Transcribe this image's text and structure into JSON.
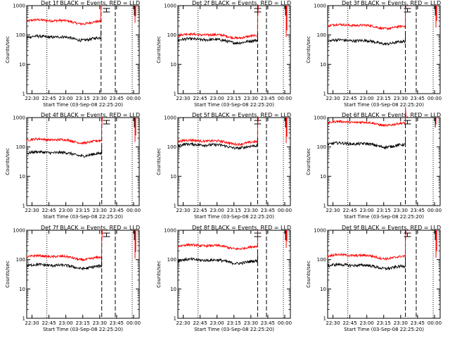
{
  "chart_data": {
    "type": "line",
    "scale_y": "log",
    "ylim": [
      1,
      1000
    ],
    "yticks": [
      "1",
      "10",
      "100",
      "1000"
    ],
    "xticks": [
      "22:30",
      "22:45",
      "23:00",
      "23:15",
      "23:30",
      "23:45",
      "00:00"
    ],
    "xlim": [
      "22:25:20",
      "00:05"
    ],
    "xlabel": "Start Time (03-Sep-08 22:25:20)",
    "ylabel": "Counts/sec",
    "colors": {
      "black": "#000000",
      "red": "#ff0000"
    },
    "panels": [
      {
        "title": "Det 1f BLACK = Events, RED = LLD",
        "black_level": 80,
        "red_level": 290,
        "marker_x": [
          22.72,
          23.52,
          23.73,
          23.98
        ]
      },
      {
        "title": "Det 2f BLACK = Events, RED = LLD",
        "black_level": 65,
        "red_level": 95,
        "marker_x": [
          22.72,
          23.6,
          23.73,
          23.98
        ]
      },
      {
        "title": "Det 3f BLACK = Events, RED = LLD",
        "black_level": 60,
        "red_level": 200,
        "marker_x": [
          22.72,
          23.57,
          23.73,
          23.98
        ]
      },
      {
        "title": "Det 4f BLACK = Events, RED = LLD",
        "black_level": 60,
        "red_level": 165,
        "marker_x": [
          22.72,
          23.53,
          23.73,
          23.98
        ]
      },
      {
        "title": "Det 5f BLACK = Events, RED = LLD",
        "black_level": 110,
        "red_level": 150,
        "marker_x": [
          22.72,
          23.6,
          23.73,
          23.98
        ]
      },
      {
        "title": "Det 6f BLACK = Events, RED = LLD",
        "black_level": 120,
        "red_level": 650,
        "marker_x": [
          22.72,
          23.57,
          23.73,
          23.98
        ]
      },
      {
        "title": "Det 7f BLACK = Events, RED = LLD",
        "black_level": 60,
        "red_level": 120,
        "marker_x": [
          22.72,
          23.53,
          23.73,
          23.98
        ]
      },
      {
        "title": "Det 8f BLACK = Events, RED = LLD",
        "black_level": 90,
        "red_level": 280,
        "marker_x": [
          22.72,
          23.6,
          23.73,
          23.98
        ]
      },
      {
        "title": "Det 9f BLACK = Events, RED = LLD",
        "black_level": 60,
        "red_level": 130,
        "marker_x": [
          22.72,
          23.57,
          23.73,
          23.98
        ]
      }
    ]
  }
}
